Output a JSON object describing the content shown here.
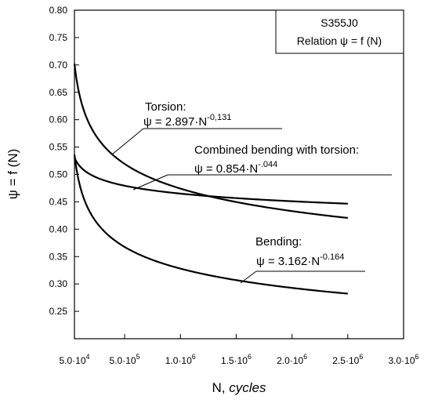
{
  "chart_data": {
    "type": "line",
    "title_box": {
      "line1": "S355J0",
      "line2": "Relation ψ = f (N)"
    },
    "xlabel_prefix": "N, ",
    "xlabel_italic": "cycles",
    "ylabel": "ψ = f (N)",
    "xlim": [
      50000,
      3000000
    ],
    "ylim": [
      0.2,
      0.8
    ],
    "x_ticks": [
      {
        "value": 50000,
        "mantissa": "5.0",
        "exp": "4"
      },
      {
        "value": 500000,
        "mantissa": "5.0",
        "exp": "5"
      },
      {
        "value": 1000000,
        "mantissa": "1.0",
        "exp": "6"
      },
      {
        "value": 1500000,
        "mantissa": "1.5",
        "exp": "6"
      },
      {
        "value": 2000000,
        "mantissa": "2.0",
        "exp": "6"
      },
      {
        "value": 2500000,
        "mantissa": "2.5",
        "exp": "6"
      },
      {
        "value": 3000000,
        "mantissa": "3.0",
        "exp": "6"
      }
    ],
    "y_ticks": [
      "0.80",
      "0.75",
      "0.70",
      "0.65",
      "0.60",
      "0.55",
      "0.50",
      "0.45",
      "0.40",
      "0.35",
      "0.30",
      "0.25"
    ],
    "series": [
      {
        "name": "Torsion",
        "coef": 2.897,
        "exponent": -0.131,
        "x_range": [
          50000,
          2500000
        ],
        "label_title": "Torsion:",
        "label_formula": "ψ = 2.897·N",
        "label_exp": "-0,131"
      },
      {
        "name": "Combined bending with torsion",
        "coef": 0.854,
        "exponent": -0.044,
        "x_range": [
          50000,
          2500000
        ],
        "label_title": "Combined bending with torsion:",
        "label_formula": "ψ = 0.854·N",
        "label_exp": "-.044"
      },
      {
        "name": "Bending",
        "coef": 3.162,
        "exponent": -0.164,
        "x_range": [
          50000,
          2500000
        ],
        "label_title": "Bending:",
        "label_formula": "ψ = 3.162·N",
        "label_exp": "-0.164"
      }
    ]
  }
}
